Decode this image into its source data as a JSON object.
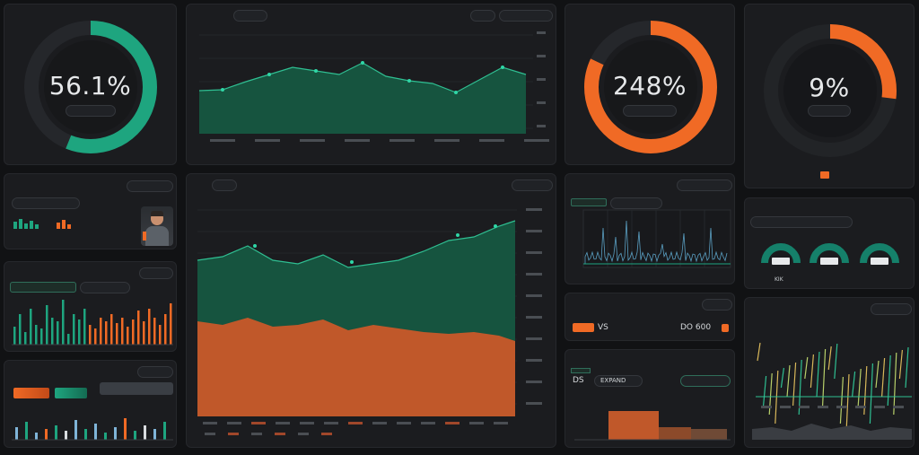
{
  "gauges": {
    "g1": {
      "value": "56.1%",
      "label": "",
      "pill": "",
      "color": "#1ea57f",
      "fraction": 0.561
    },
    "g2": {
      "value": "248%",
      "label": "",
      "pill": "",
      "color": "#f06a25",
      "fraction": 0.82
    },
    "g3": {
      "value": "9%",
      "label": "",
      "pill": "",
      "color": "#f06a25",
      "fraction": 0.27
    }
  },
  "panel_c1r2": {
    "title": "",
    "pill": "",
    "input": ""
  },
  "panel_bigchart": {
    "title": "",
    "pill": ""
  },
  "panel_c3r3": {
    "value_left": "VS",
    "value_right": "DO 600",
    "value_orange": ""
  },
  "panel_c3r4": {
    "label": "DS",
    "pill": "EXPAND"
  },
  "panel_c4r2": {
    "labels": [
      "KIK",
      "",
      ""
    ]
  },
  "colors": {
    "green": "#1ea57f",
    "dark_green": "#16543f",
    "orange": "#f06a25",
    "orange_fill": "#c0582a"
  }
}
